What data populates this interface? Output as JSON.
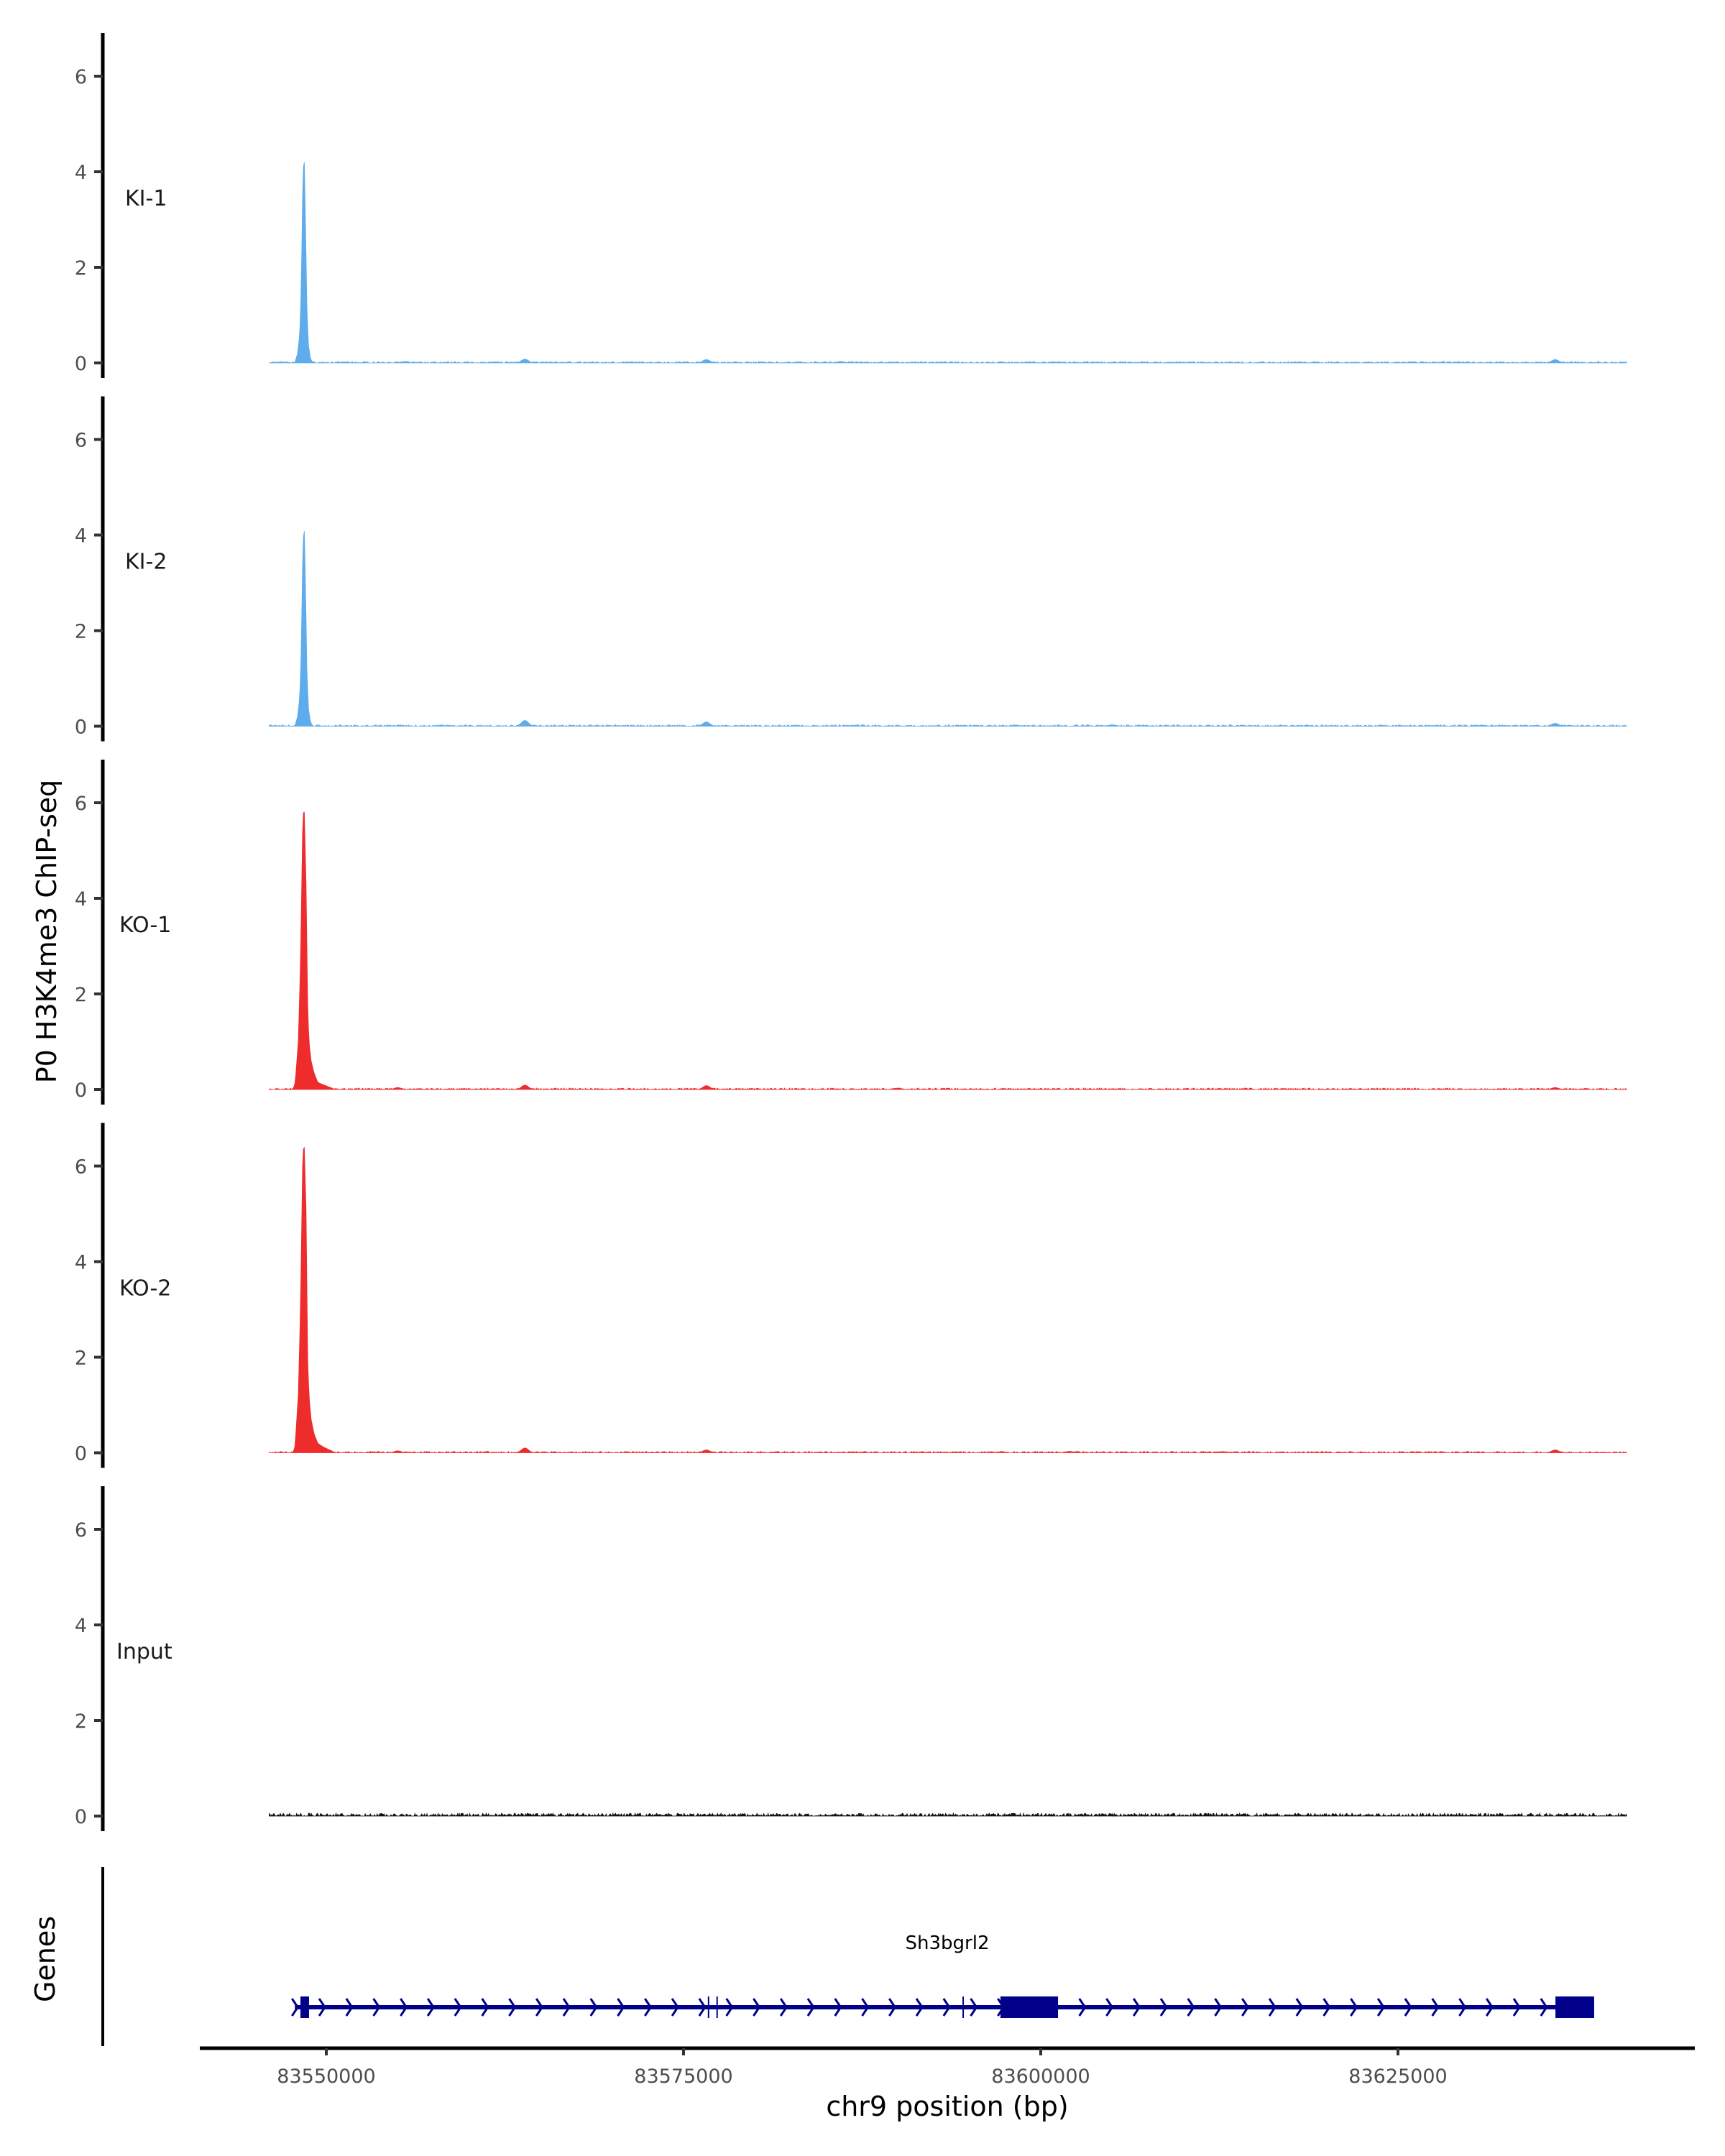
{
  "chart_data": {
    "type": "area",
    "ylabel": "P0 H3K4me3 ChIP-seq",
    "xlabel": "chr9 position (bp)",
    "ylim": [
      0,
      6.8
    ],
    "yticks": [
      "0",
      "2",
      "4",
      "6"
    ],
    "xlim": [
      83542500,
      83647200
    ],
    "xticks": [
      {
        "value": 83550000,
        "label": "83550000"
      },
      {
        "value": 83575000,
        "label": "83575000"
      },
      {
        "value": 83600000,
        "label": "83600000"
      },
      {
        "value": 83625000,
        "label": "83625000"
      }
    ],
    "data_range": [
      83546000,
      83641000
    ],
    "tracks": [
      {
        "name": "KI-1",
        "color": "#5eacec",
        "noise": 0.03,
        "peak": [
          [
            83547790,
            0
          ],
          [
            83547990,
            0.2
          ],
          [
            83548140,
            0.6
          ],
          [
            83548240,
            1.5
          ],
          [
            83548340,
            3.5
          ],
          [
            83548440,
            4.5
          ],
          [
            83548540,
            3.0
          ],
          [
            83548640,
            1.2
          ],
          [
            83548740,
            0.4
          ],
          [
            83548890,
            0.1
          ],
          [
            83549040,
            0
          ]
        ],
        "bumps": [
          [
            83555500,
            0.03
          ],
          [
            83563900,
            0.08
          ],
          [
            83576600,
            0.07
          ],
          [
            83586000,
            0.03
          ],
          [
            83636000,
            0.07
          ]
        ]
      },
      {
        "name": "KI-2",
        "color": "#5eacec",
        "noise": 0.03,
        "peak": [
          [
            83547790,
            0
          ],
          [
            83547990,
            0.2
          ],
          [
            83548140,
            0.6
          ],
          [
            83548240,
            1.5
          ],
          [
            83548340,
            3.4
          ],
          [
            83548440,
            4.35
          ],
          [
            83548540,
            3.0
          ],
          [
            83548640,
            1.2
          ],
          [
            83548740,
            0.4
          ],
          [
            83548890,
            0.1
          ],
          [
            83549040,
            0
          ]
        ],
        "bumps": [
          [
            83563900,
            0.12
          ],
          [
            83576600,
            0.09
          ],
          [
            83605000,
            0.03
          ],
          [
            83636000,
            0.06
          ]
        ]
      },
      {
        "name": "KO-1",
        "color": "#ee2c2c",
        "noise": 0.03,
        "peak": [
          [
            83547640,
            0
          ],
          [
            83547790,
            0.1
          ],
          [
            83547890,
            0.4
          ],
          [
            83548040,
            1.0
          ],
          [
            83548190,
            2.6
          ],
          [
            83548340,
            5.4
          ],
          [
            83548440,
            6.05
          ],
          [
            83548590,
            4.2
          ],
          [
            83548690,
            1.8
          ],
          [
            83548790,
            1.0
          ],
          [
            83548940,
            0.6
          ],
          [
            83549140,
            0.35
          ],
          [
            83549400,
            0.15
          ],
          [
            83549800,
            0.1
          ],
          [
            83550300,
            0.04
          ],
          [
            83550650,
            0
          ]
        ],
        "bumps": [
          [
            83555000,
            0.04
          ],
          [
            83563900,
            0.09
          ],
          [
            83576600,
            0.08
          ],
          [
            83590000,
            0.03
          ],
          [
            83636000,
            0.04
          ]
        ]
      },
      {
        "name": "KO-2",
        "color": "#ee2c2c",
        "noise": 0.03,
        "peak": [
          [
            83547640,
            0
          ],
          [
            83547790,
            0.1
          ],
          [
            83547890,
            0.5
          ],
          [
            83548040,
            1.2
          ],
          [
            83548190,
            3.0
          ],
          [
            83548340,
            6.0
          ],
          [
            83548440,
            6.6
          ],
          [
            83548590,
            5.0
          ],
          [
            83548690,
            2.0
          ],
          [
            83548790,
            1.2
          ],
          [
            83548940,
            0.7
          ],
          [
            83549140,
            0.4
          ],
          [
            83549400,
            0.2
          ],
          [
            83549800,
            0.12
          ],
          [
            83550300,
            0.05
          ],
          [
            83550650,
            0
          ]
        ],
        "bumps": [
          [
            83555000,
            0.04
          ],
          [
            83563900,
            0.1
          ],
          [
            83576600,
            0.06
          ],
          [
            83602000,
            0.03
          ],
          [
            83636000,
            0.06
          ]
        ]
      },
      {
        "name": "Input",
        "color": "#111111",
        "noise": 0.06,
        "peak": [],
        "bumps": []
      }
    ],
    "genes": {
      "title": "Genes",
      "color": "#00008b",
      "name": "Sh3bgrl2",
      "start": 83547800,
      "end": 83638730,
      "strand": "+",
      "exons": [
        [
          83548190,
          83548790
        ],
        [
          83576700,
          83576800
        ],
        [
          83577300,
          83577400
        ],
        [
          83594520,
          83594600
        ],
        [
          83597180,
          83601210
        ],
        [
          83636020,
          83638730
        ]
      ]
    }
  }
}
